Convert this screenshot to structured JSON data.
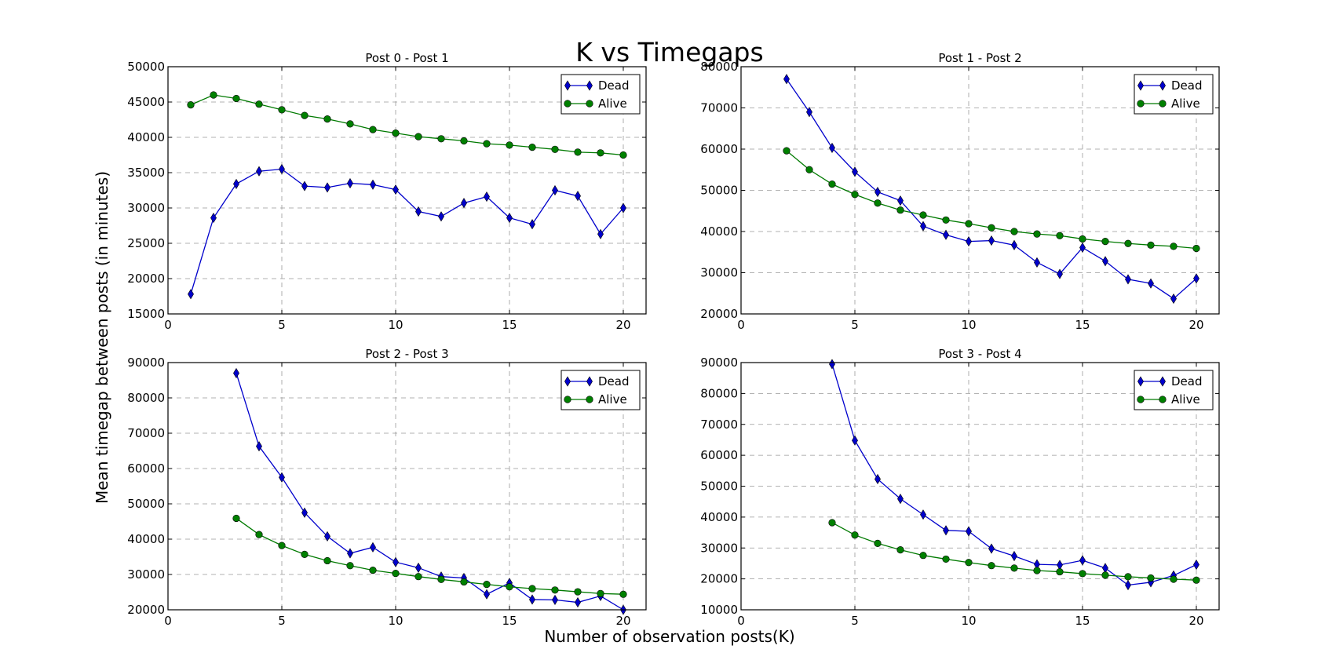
{
  "figure": {
    "title": "K vs Timegaps",
    "xlabel": "Number of observation posts(K)",
    "ylabel": "Mean timegap between posts (in minutes)"
  },
  "colors": {
    "dead": "#0000cc",
    "alive": "#007a00",
    "alive_fill": "#008000",
    "grid": "#999999"
  },
  "chart_data": [
    {
      "type": "line",
      "title": "Post 0 - Post 1",
      "xlim": [
        0,
        21
      ],
      "ylim": [
        15000,
        50000
      ],
      "xticks": [
        0,
        5,
        10,
        15,
        20
      ],
      "yticks": [
        15000,
        20000,
        25000,
        30000,
        35000,
        40000,
        45000,
        50000
      ],
      "grid": true,
      "legend": "top-right",
      "series": [
        {
          "name": "Dead",
          "marker": "diamond",
          "x": [
            1,
            2,
            3,
            4,
            5,
            6,
            7,
            8,
            9,
            10,
            11,
            12,
            13,
            14,
            15,
            16,
            17,
            18,
            19,
            20
          ],
          "y": [
            17800,
            28600,
            33400,
            35200,
            35500,
            33100,
            32900,
            33500,
            33300,
            32600,
            29500,
            28800,
            30700,
            31600,
            28600,
            27700,
            32500,
            31700,
            26300,
            30000
          ]
        },
        {
          "name": "Alive",
          "marker": "circle",
          "x": [
            1,
            2,
            3,
            4,
            5,
            6,
            7,
            8,
            9,
            10,
            11,
            12,
            13,
            14,
            15,
            16,
            17,
            18,
            19,
            20
          ],
          "y": [
            44600,
            46000,
            45500,
            44700,
            43900,
            43100,
            42600,
            41900,
            41100,
            40600,
            40100,
            39800,
            39500,
            39100,
            38900,
            38600,
            38300,
            37900,
            37800,
            37500
          ]
        }
      ]
    },
    {
      "type": "line",
      "title": "Post 1 - Post 2",
      "xlim": [
        0,
        21
      ],
      "ylim": [
        20000,
        80000
      ],
      "xticks": [
        0,
        5,
        10,
        15,
        20
      ],
      "yticks": [
        20000,
        30000,
        40000,
        50000,
        60000,
        70000,
        80000
      ],
      "grid": true,
      "legend": "top-right",
      "series": [
        {
          "name": "Dead",
          "marker": "diamond",
          "x": [
            2,
            3,
            4,
            5,
            6,
            7,
            8,
            9,
            10,
            11,
            12,
            13,
            14,
            15,
            16,
            17,
            18,
            19,
            20
          ],
          "y": [
            77000,
            69000,
            60300,
            54500,
            49600,
            47500,
            41300,
            39200,
            37600,
            37800,
            36700,
            32500,
            29700,
            36100,
            32800,
            28400,
            27400,
            23700,
            28600
          ]
        },
        {
          "name": "Alive",
          "marker": "circle",
          "x": [
            2,
            3,
            4,
            5,
            6,
            7,
            8,
            9,
            10,
            11,
            12,
            13,
            14,
            15,
            16,
            17,
            18,
            19,
            20
          ],
          "y": [
            59600,
            55000,
            51500,
            49000,
            46900,
            45200,
            44000,
            42800,
            41900,
            40900,
            40000,
            39400,
            39000,
            38200,
            37600,
            37100,
            36700,
            36400,
            35900
          ]
        }
      ]
    },
    {
      "type": "line",
      "title": "Post 2 - Post 3",
      "xlim": [
        0,
        21
      ],
      "ylim": [
        20000,
        90000
      ],
      "xticks": [
        0,
        5,
        10,
        15,
        20
      ],
      "yticks": [
        20000,
        30000,
        40000,
        50000,
        60000,
        70000,
        80000,
        90000
      ],
      "grid": true,
      "legend": "top-right",
      "series": [
        {
          "name": "Dead",
          "marker": "diamond",
          "x": [
            3,
            4,
            5,
            6,
            7,
            8,
            9,
            10,
            11,
            12,
            13,
            14,
            15,
            16,
            17,
            18,
            19,
            20
          ],
          "y": [
            87000,
            66300,
            57500,
            47500,
            40800,
            36000,
            37700,
            33500,
            31900,
            29400,
            29000,
            24400,
            27600,
            22900,
            22800,
            22100,
            23900,
            20000
          ]
        },
        {
          "name": "Alive",
          "marker": "circle",
          "x": [
            3,
            4,
            5,
            6,
            7,
            8,
            9,
            10,
            11,
            12,
            13,
            14,
            15,
            16,
            17,
            18,
            19,
            20
          ],
          "y": [
            45900,
            41300,
            38200,
            35700,
            33900,
            32500,
            31200,
            30300,
            29400,
            28600,
            27900,
            27200,
            26500,
            26000,
            25600,
            25100,
            24600,
            24400
          ]
        }
      ]
    },
    {
      "type": "line",
      "title": "Post 3 - Post 4",
      "xlim": [
        0,
        21
      ],
      "ylim": [
        10000,
        90000
      ],
      "xticks": [
        0,
        5,
        10,
        15,
        20
      ],
      "yticks": [
        10000,
        20000,
        30000,
        40000,
        50000,
        60000,
        70000,
        80000,
        90000
      ],
      "grid": true,
      "legend": "top-right",
      "series": [
        {
          "name": "Dead",
          "marker": "diamond",
          "x": [
            4,
            5,
            6,
            7,
            8,
            9,
            10,
            11,
            12,
            13,
            14,
            15,
            16,
            17,
            18,
            19,
            20
          ],
          "y": [
            89500,
            64800,
            52300,
            45900,
            40800,
            35700,
            35400,
            29800,
            27400,
            24700,
            24500,
            26000,
            23500,
            18000,
            18900,
            21100,
            24600
          ]
        },
        {
          "name": "Alive",
          "marker": "circle",
          "x": [
            4,
            5,
            6,
            7,
            8,
            9,
            10,
            11,
            12,
            13,
            14,
            15,
            16,
            17,
            18,
            19,
            20
          ],
          "y": [
            38200,
            34200,
            31500,
            29400,
            27600,
            26400,
            25300,
            24300,
            23500,
            22700,
            22300,
            21700,
            21200,
            20700,
            20300,
            19900,
            19600
          ]
        }
      ]
    }
  ]
}
